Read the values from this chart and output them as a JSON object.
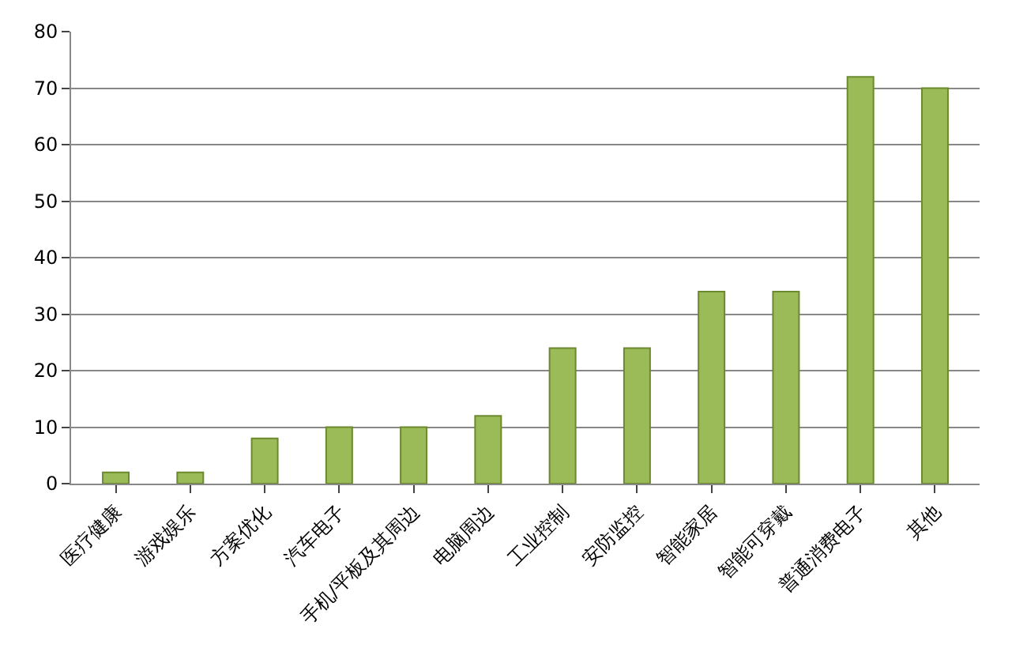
{
  "chart_data": {
    "type": "bar",
    "categories": [
      "医疗健康",
      "游戏娱乐",
      "方案优化",
      "汽车电子",
      "手机/平板及其周边",
      "电脑周边",
      "工业控制",
      "安防监控",
      "智能家居",
      "智能可穿戴",
      "普通消费电子",
      "其他"
    ],
    "values": [
      2,
      2,
      8,
      10,
      10,
      12,
      24,
      24,
      34,
      34,
      72,
      70
    ],
    "color": "#9bbb59",
    "ylim": [
      0,
      80
    ],
    "yticks": [
      0,
      10,
      20,
      30,
      40,
      50,
      60,
      70,
      80
    ],
    "grid": "y"
  }
}
